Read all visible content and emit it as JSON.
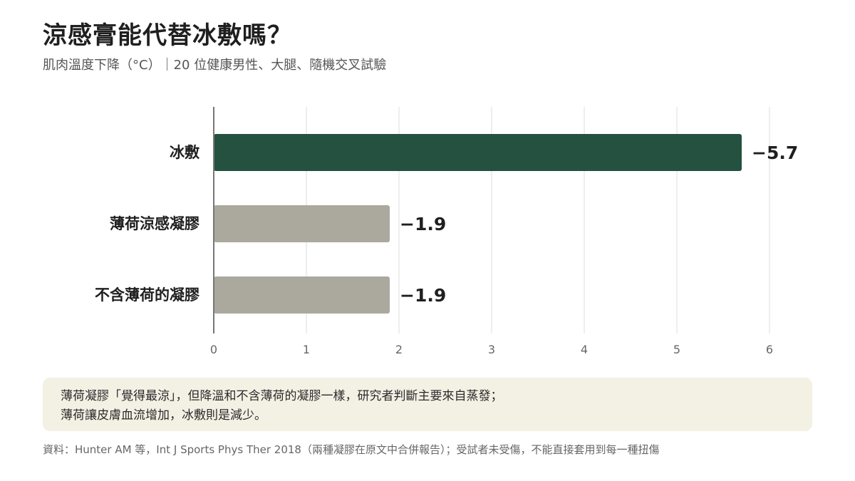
{
  "header": {
    "title": "涼感膏能代替冰敷嗎？",
    "subtitle": "肌肉溫度下降（°C）｜20 位健康男性、大腿、隨機交叉試驗"
  },
  "chart_data": {
    "type": "bar",
    "orientation": "horizontal",
    "categories": [
      "冰敷",
      "薄荷涼感凝膠",
      "不含薄荷的凝膠"
    ],
    "values": [
      -5.7,
      -1.9,
      -1.9
    ],
    "value_labels": [
      "−5.7",
      "−1.9",
      "−1.9"
    ],
    "bar_colors": [
      "#245140",
      "#aba89d",
      "#aba89d"
    ],
    "xlim": [
      0,
      6
    ],
    "xticks": [
      0,
      1,
      2,
      3,
      4,
      5,
      6
    ],
    "grid": true,
    "title": "",
    "xlabel": "",
    "ylabel": ""
  },
  "note": {
    "line1": "薄荷凝膠「覺得最涼」，但降溫和不含薄荷的凝膠一樣，研究者判斷主要來自蒸發；",
    "line2": "薄荷讓皮膚血流增加，冰敷則是減少。"
  },
  "source": "資料：Hunter AM 等，Int J Sports Phys Ther 2018（兩種凝膠在原文中合併報告）；受試者未受傷，不能直接套用到每一種扭傷"
}
